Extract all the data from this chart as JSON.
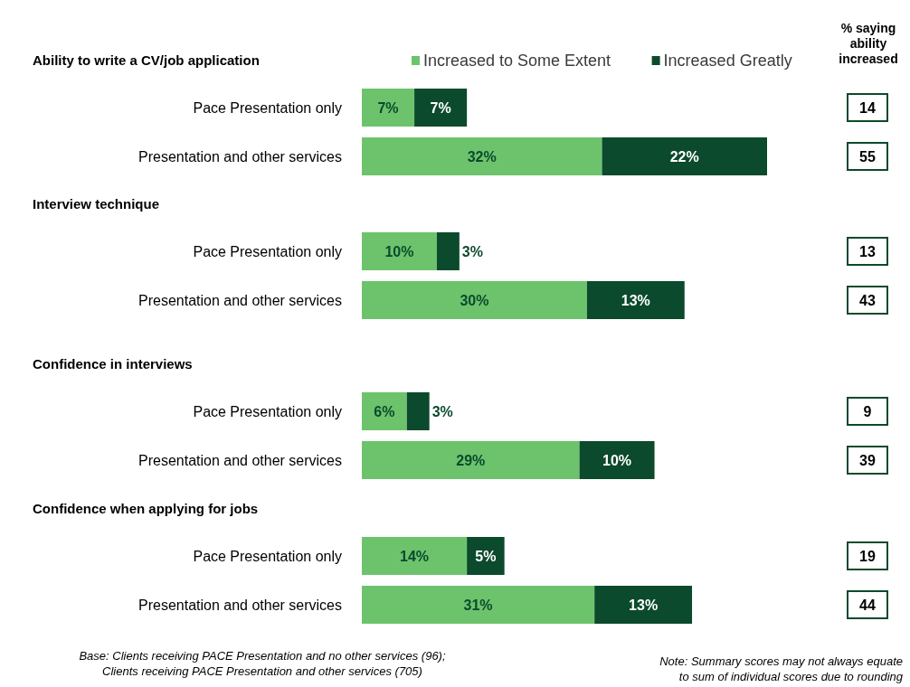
{
  "chart_data": [
    {
      "type": "bar",
      "orientation": "horizontal",
      "stacked": true,
      "title": "Ability to write a CV/job application",
      "legend": "top",
      "categories": [
        "Pace Presentation only",
        "Presentation and other services"
      ],
      "series": [
        {
          "name": "Increased to Some Extent",
          "color": "#6cc36c",
          "values": [
            7,
            32
          ],
          "value_labels": [
            "7%",
            "32%"
          ]
        },
        {
          "name": "Increased Greatly",
          "color": "#0b4a2c",
          "values": [
            7,
            22
          ],
          "value_labels": [
            "7%",
            "22%"
          ]
        }
      ],
      "annotations": [
        "14",
        "55",
        "% saying ability increased"
      ]
    },
    {
      "type": "bar",
      "orientation": "horizontal",
      "stacked": true,
      "title": "Interview technique",
      "categories": [
        "Pace Presentation only",
        "Presentation and other services"
      ],
      "series": [
        {
          "color": "#6cc36c",
          "values": [
            10,
            30
          ],
          "value_labels": [
            "10%",
            "30%"
          ]
        },
        {
          "color": "#0b4a2c",
          "values": [
            3,
            13
          ],
          "value_labels": [
            "3%",
            "13%"
          ]
        }
      ],
      "annotations": [
        "13",
        "43"
      ]
    },
    {
      "type": "bar",
      "orientation": "horizontal",
      "stacked": true,
      "title": "Confidence in interviews",
      "categories": [
        "Pace Presentation only",
        "Presentation and other services"
      ],
      "series": [
        {
          "color": "#6cc36c",
          "values": [
            6,
            29
          ],
          "value_labels": [
            "6%",
            "29%"
          ]
        },
        {
          "color": "#0b4a2c",
          "values": [
            3,
            10
          ],
          "value_labels": [
            "3%",
            "10%"
          ]
        }
      ],
      "annotations": [
        "9",
        "39"
      ]
    },
    {
      "type": "bar",
      "orientation": "horizontal",
      "stacked": true,
      "title": "Confidence when applying for jobs",
      "categories": [
        "Pace Presentation only",
        "Presentation and other services"
      ],
      "series": [
        {
          "color": "#6cc36c",
          "values": [
            14,
            31
          ],
          "value_labels": [
            "14%",
            "31%"
          ]
        },
        {
          "color": "#0b4a2c",
          "values": [
            5,
            13
          ],
          "value_labels": [
            "5%",
            "13%"
          ]
        }
      ],
      "annotations": [
        "19",
        "44",
        "Base: Clients receiving PACE Presentation and no other services (96); Clients receiving PACE Presentation and other services (705)",
        "Note: Summary scores may not always equate to sum of individual scores due to rounding"
      ]
    }
  ]
}
